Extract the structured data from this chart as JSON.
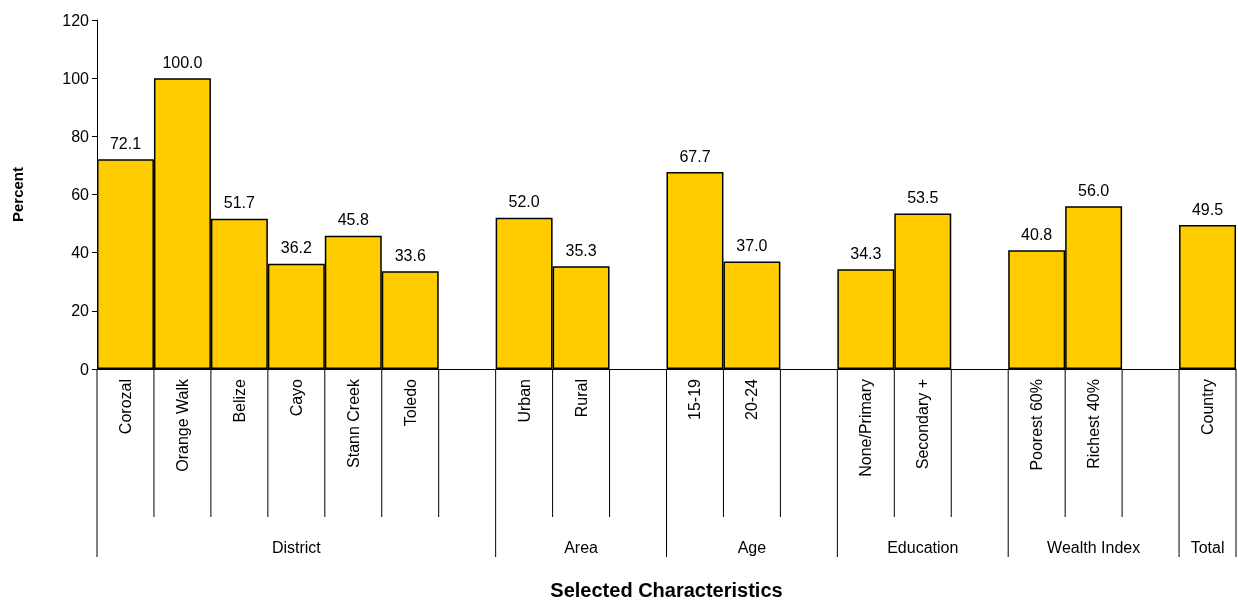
{
  "chart_data": {
    "type": "bar",
    "ylabel": "Percent",
    "categories": [
      "Corozal",
      "Orange Walk",
      "Belize",
      "Cayo",
      "Stann Creek",
      "Toledo",
      null,
      "Urban",
      "Rural",
      null,
      "15-19",
      "20-24",
      null,
      "None/Primary",
      "Secondary +",
      null,
      "Poorest 60%",
      "Richest 40%",
      null,
      "Country"
    ],
    "values": [
      72.1,
      100,
      51.7,
      36.2,
      45.8,
      33.6,
      null,
      52,
      35.3,
      null,
      67.7,
      37,
      null,
      34.3,
      53.5,
      null,
      40.8,
      56,
      null,
      49.5
    ],
    "value_labels": [
      "72.1",
      "100.0",
      "51.7",
      "36.2",
      "45.8",
      "33.6",
      null,
      "52.0",
      "35.3",
      null,
      "67.7",
      "37.0",
      null,
      "34.3",
      "53.5",
      null,
      "40.8",
      "56.0",
      null,
      "49.5"
    ],
    "color": "#ffcc00",
    "ylim": [
      0,
      120
    ],
    "yticks": [
      0,
      20,
      40,
      60,
      80,
      100,
      120
    ],
    "grid": false,
    "annotations": [
      "District",
      "Area",
      "Age",
      "Education",
      "Wealth Index",
      "Total",
      "Selected Characteristics"
    ]
  }
}
